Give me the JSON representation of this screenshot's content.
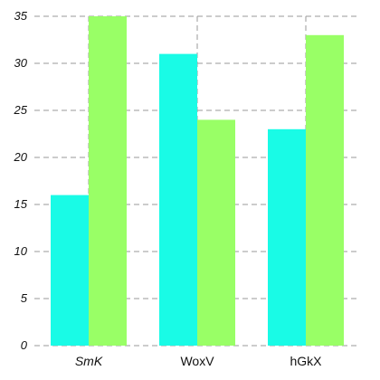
{
  "chart_data": {
    "type": "bar",
    "title": "",
    "xlabel": "",
    "ylabel": "",
    "categories": [
      "SmK",
      "WoxV",
      "hGkX"
    ],
    "series": [
      {
        "values": [
          16,
          31,
          23
        ],
        "color": "#19fbe6"
      },
      {
        "values": [
          35,
          24,
          33
        ],
        "color": "#99ff66"
      }
    ],
    "ylim": [
      0,
      35
    ],
    "yticks": [
      0,
      5,
      10,
      15,
      20,
      25,
      30,
      35
    ],
    "grid": true,
    "legend": "none"
  }
}
